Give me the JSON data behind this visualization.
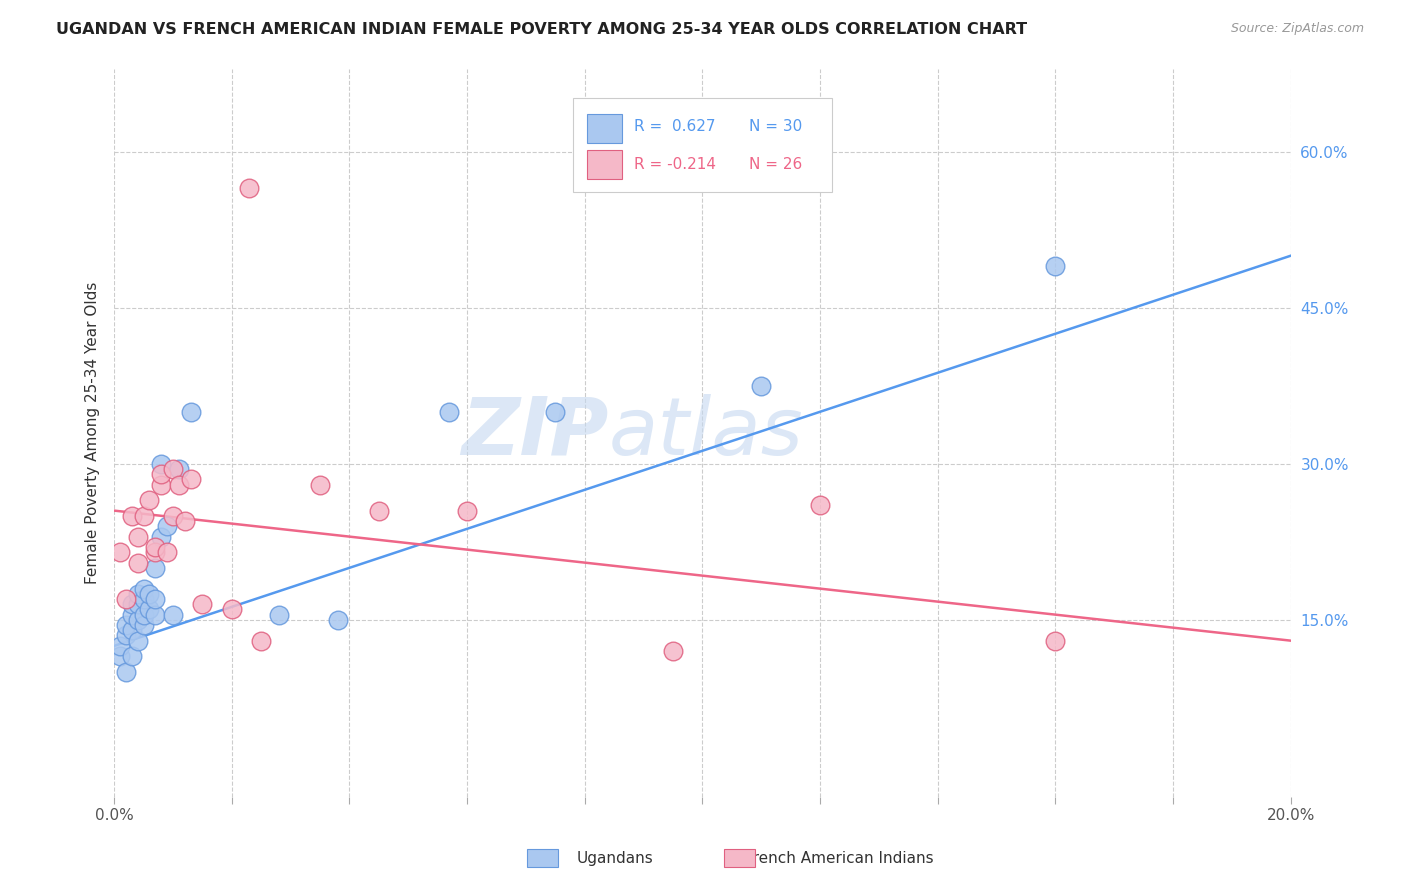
{
  "title": "UGANDAN VS FRENCH AMERICAN INDIAN FEMALE POVERTY AMONG 25-34 YEAR OLDS CORRELATION CHART",
  "source": "Source: ZipAtlas.com",
  "ylabel": "Female Poverty Among 25-34 Year Olds",
  "xlim": [
    0.0,
    0.2
  ],
  "ylim": [
    -0.02,
    0.68
  ],
  "xticks": [
    0.0,
    0.02,
    0.04,
    0.06,
    0.08,
    0.1,
    0.12,
    0.14,
    0.16,
    0.18,
    0.2
  ],
  "yticks_right": [
    0.15,
    0.3,
    0.45,
    0.6
  ],
  "ytick_labels_right": [
    "15.0%",
    "30.0%",
    "45.0%",
    "60.0%"
  ],
  "blue_color": "#aac8f0",
  "pink_color": "#f5b8c8",
  "blue_edge_color": "#6699dd",
  "pink_edge_color": "#e06080",
  "blue_line_color": "#5599ee",
  "pink_line_color": "#ee6688",
  "watermark_zip": "ZIP",
  "watermark_atlas": "atlas",
  "blue_scatter_x": [
    0.001,
    0.001,
    0.002,
    0.002,
    0.002,
    0.003,
    0.003,
    0.003,
    0.003,
    0.004,
    0.004,
    0.004,
    0.004,
    0.005,
    0.005,
    0.005,
    0.005,
    0.006,
    0.006,
    0.007,
    0.007,
    0.007,
    0.008,
    0.008,
    0.009,
    0.01,
    0.011,
    0.013,
    0.028,
    0.038,
    0.057,
    0.075,
    0.11,
    0.16
  ],
  "blue_scatter_y": [
    0.115,
    0.125,
    0.1,
    0.135,
    0.145,
    0.115,
    0.14,
    0.155,
    0.165,
    0.13,
    0.15,
    0.165,
    0.175,
    0.145,
    0.155,
    0.17,
    0.18,
    0.16,
    0.175,
    0.155,
    0.17,
    0.2,
    0.23,
    0.3,
    0.24,
    0.155,
    0.295,
    0.35,
    0.155,
    0.15,
    0.35,
    0.35,
    0.375,
    0.49
  ],
  "pink_scatter_x": [
    0.001,
    0.002,
    0.003,
    0.004,
    0.004,
    0.005,
    0.006,
    0.007,
    0.007,
    0.008,
    0.008,
    0.009,
    0.01,
    0.01,
    0.011,
    0.012,
    0.013,
    0.015,
    0.02,
    0.025,
    0.035,
    0.045,
    0.06,
    0.095,
    0.12,
    0.16
  ],
  "pink_scatter_y": [
    0.215,
    0.17,
    0.25,
    0.205,
    0.23,
    0.25,
    0.265,
    0.215,
    0.22,
    0.28,
    0.29,
    0.215,
    0.25,
    0.295,
    0.28,
    0.245,
    0.285,
    0.165,
    0.16,
    0.13,
    0.28,
    0.255,
    0.255,
    0.12,
    0.26,
    0.13
  ],
  "pink_outlier_x": [
    0.023
  ],
  "pink_outlier_y": [
    0.565
  ],
  "blue_line_x0": 0.0,
  "blue_line_y0": 0.125,
  "blue_line_x1": 0.2,
  "blue_line_y1": 0.5,
  "pink_line_x0": 0.0,
  "pink_line_y0": 0.255,
  "pink_line_x1": 0.2,
  "pink_line_y1": 0.13
}
